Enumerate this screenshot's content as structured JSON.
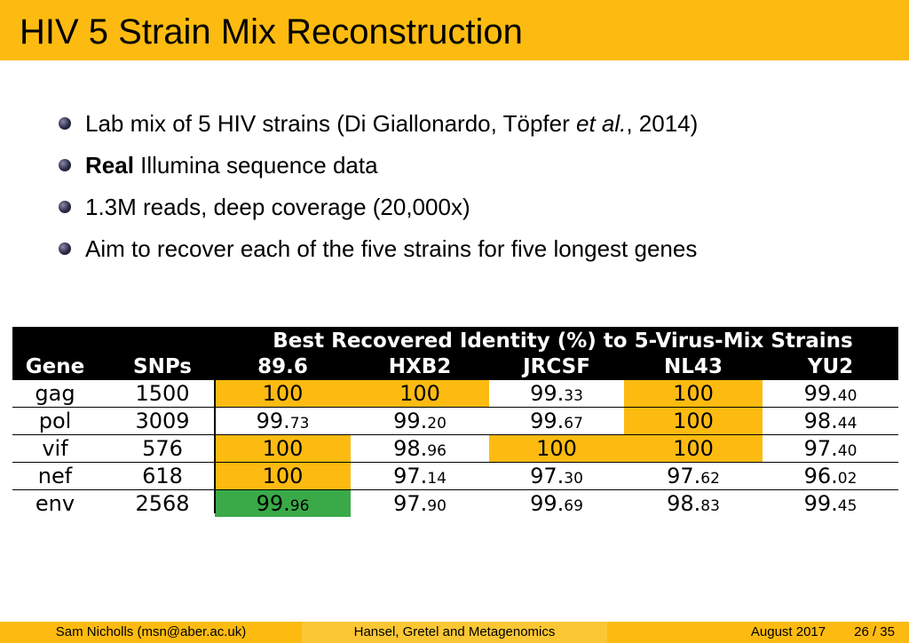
{
  "title": "HIV 5 Strain Mix Reconstruction",
  "bullets": [
    {
      "pre": "Lab mix of 5 HIV strains (Di Giallonardo, Töpfer ",
      "italic": "et al.",
      "post": ", 2014)"
    },
    {
      "bold": "Real",
      "post": " Illumina sequence data"
    },
    {
      "text": "1.3M reads, deep coverage (20,000x)"
    },
    {
      "text": "Aim to recover each of the five strains for five longest genes"
    }
  ],
  "table": {
    "span_header": "Best Recovered Identity (%) to 5-Virus-Mix Strains",
    "columns": [
      "Gene",
      "SNPs",
      "89.6",
      "HXB2",
      "JRCSF",
      "NL43",
      "YU2"
    ],
    "rows": [
      {
        "gene": "gag",
        "snps": "1500",
        "vals": [
          {
            "int": "100",
            "dec": "",
            "hl": "yellow"
          },
          {
            "int": "100",
            "dec": "",
            "hl": "yellow"
          },
          {
            "int": "99.",
            "dec": "33",
            "hl": ""
          },
          {
            "int": "100",
            "dec": "",
            "hl": "yellow"
          },
          {
            "int": "99.",
            "dec": "40",
            "hl": ""
          }
        ]
      },
      {
        "gene": "pol",
        "snps": "3009",
        "vals": [
          {
            "int": "99.",
            "dec": "73",
            "hl": ""
          },
          {
            "int": "99.",
            "dec": "20",
            "hl": ""
          },
          {
            "int": "99.",
            "dec": "67",
            "hl": ""
          },
          {
            "int": "100",
            "dec": "",
            "hl": "yellow"
          },
          {
            "int": "98.",
            "dec": "44",
            "hl": ""
          }
        ]
      },
      {
        "gene": "vif",
        "snps": "576",
        "vals": [
          {
            "int": "100",
            "dec": "",
            "hl": "yellow"
          },
          {
            "int": "98.",
            "dec": "96",
            "hl": ""
          },
          {
            "int": "100",
            "dec": "",
            "hl": "yellow"
          },
          {
            "int": "100",
            "dec": "",
            "hl": "yellow"
          },
          {
            "int": "97.",
            "dec": "40",
            "hl": ""
          }
        ]
      },
      {
        "gene": "nef",
        "snps": "618",
        "vals": [
          {
            "int": "100",
            "dec": "",
            "hl": "yellow"
          },
          {
            "int": "97.",
            "dec": "14",
            "hl": ""
          },
          {
            "int": "97.",
            "dec": "30",
            "hl": ""
          },
          {
            "int": "97.",
            "dec": "62",
            "hl": ""
          },
          {
            "int": "96.",
            "dec": "02",
            "hl": ""
          }
        ]
      },
      {
        "gene": "env",
        "snps": "2568",
        "vals": [
          {
            "int": "99.",
            "dec": "96",
            "hl": "green"
          },
          {
            "int": "97.",
            "dec": "90",
            "hl": ""
          },
          {
            "int": "99.",
            "dec": "69",
            "hl": ""
          },
          {
            "int": "98.",
            "dec": "83",
            "hl": ""
          },
          {
            "int": "99.",
            "dec": "45",
            "hl": ""
          }
        ]
      }
    ]
  },
  "footer": {
    "author": "Sam Nicholls  (msn@aber.ac.uk)",
    "talk": "Hansel, Gretel and Metagenomics",
    "date": "August 2017",
    "page": "26 / 35"
  },
  "colors": {
    "accent": "#fdbb11",
    "best_match": "#3aaa48",
    "header_bg": "#000000"
  }
}
